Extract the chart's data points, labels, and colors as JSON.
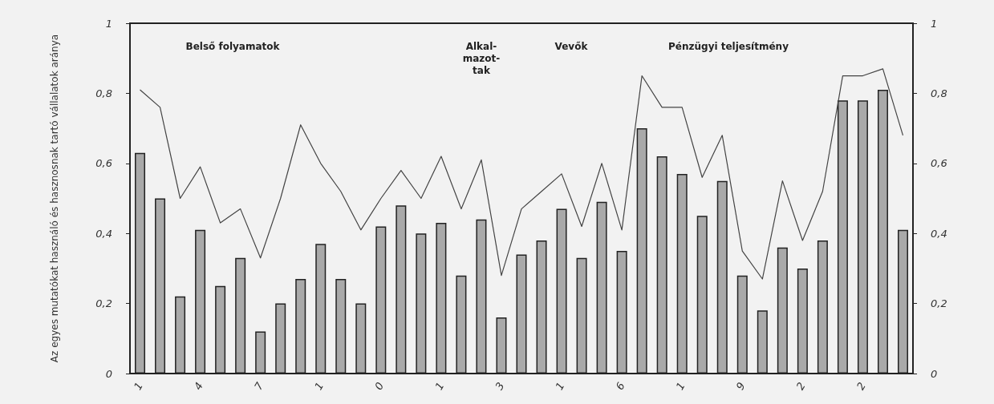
{
  "chart_data": {
    "type": "bar",
    "ylabel": "Az egyes mutatókat használó és hasznosnak tartó vállalatok aránya",
    "categories": [
      "1",
      null,
      null,
      "4",
      null,
      null,
      "7",
      null,
      null,
      "1",
      null,
      null,
      "0",
      null,
      null,
      "1",
      null,
      null,
      "3",
      null,
      null,
      "1",
      null,
      null,
      "6",
      null,
      null,
      "1",
      null,
      null,
      "9",
      null,
      null,
      "2",
      null,
      null,
      "2",
      null,
      null
    ],
    "ylim": [
      0,
      1
    ],
    "yticks": [
      0,
      {
        "value": 0.2,
        "label": "0,2"
      },
      {
        "value": 0.4,
        "label": "0,4"
      },
      {
        "value": 0.6,
        "label": "0,6"
      },
      {
        "value": 0.8,
        "label": "0,8"
      },
      1
    ],
    "y2lim": [
      0,
      1
    ],
    "y2ticks": [
      0,
      {
        "value": 0.2,
        "label": "0,2"
      },
      {
        "value": 0.4,
        "label": "0,4"
      },
      {
        "value": 0.6,
        "label": "0,6"
      },
      {
        "value": 0.8,
        "label": "0,8"
      },
      1
    ],
    "series": [
      {
        "color": "#a9a9a9",
        "values": [
          0.63,
          0.5,
          0.22,
          0.41,
          0.25,
          0.33,
          0.12,
          0.2,
          0.27,
          0.37,
          0.27,
          0.2,
          0.42,
          0.48,
          0.4,
          0.43,
          0.28,
          0.44,
          0.16,
          0.34,
          0.38,
          0.47,
          0.33,
          0.49,
          0.35,
          0.7,
          0.62,
          0.57,
          0.45,
          0.55,
          0.28,
          0.18,
          0.36,
          0.3,
          0.38,
          0.78,
          0.78,
          0.81,
          0.41
        ]
      },
      {
        "type": "line",
        "color": "#444444",
        "marker": "none",
        "values": [
          0.81,
          0.76,
          0.5,
          0.59,
          0.43,
          0.47,
          0.33,
          0.5,
          0.71,
          0.6,
          0.52,
          0.41,
          0.5,
          0.58,
          0.5,
          0.62,
          0.47,
          0.61,
          0.28,
          0.47,
          0.52,
          0.57,
          0.42,
          0.6,
          0.41,
          0.85,
          0.76,
          0.76,
          0.56,
          0.68,
          0.35,
          0.27,
          0.55,
          0.38,
          0.52,
          0.85,
          0.85,
          0.87,
          0.68
        ]
      }
    ],
    "annotations": [
      "Belső folyamatok",
      "Alkal-mazot-tak",
      "Vevők",
      "Pénzügyi teljesítmény"
    ],
    "grid": false
  }
}
